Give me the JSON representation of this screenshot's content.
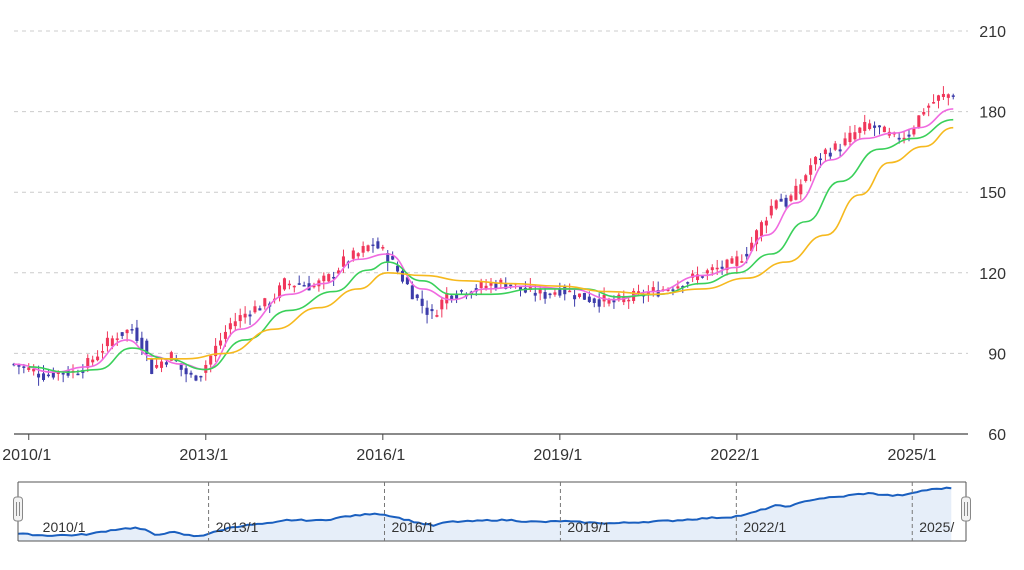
{
  "chart_data": [
    {
      "type": "candlestick",
      "title": "",
      "xlabel": "",
      "ylabel": "",
      "ylim": [
        60,
        210
      ],
      "y_ticks": [
        "210",
        "180",
        "150",
        "120",
        "90",
        "60"
      ],
      "y_tick_values": [
        210,
        180,
        150,
        120,
        90,
        60
      ],
      "x_ticks": [
        "2010/1",
        "2013/1",
        "2016/1",
        "2019/1",
        "2022/1",
        "2025/1"
      ],
      "x_tick_values": [
        "2010-01",
        "2013-01",
        "2016-01",
        "2019-01",
        "2022-01",
        "2025-01"
      ],
      "xlim": [
        "2009-10",
        "2025-12"
      ],
      "grid": "horizontal dashed",
      "candle_up_color": "#f0365a",
      "candle_down_color": "#3c3caa",
      "price_path": [
        [
          "2009-10",
          86
        ],
        [
          "2010-01",
          84
        ],
        [
          "2010-04",
          82
        ],
        [
          "2010-07",
          83
        ],
        [
          "2010-10",
          83
        ],
        [
          "2011-01",
          86
        ],
        [
          "2011-04",
          92
        ],
        [
          "2011-07",
          97
        ],
        [
          "2011-10",
          99
        ],
        [
          "2011-12",
          94
        ],
        [
          "2012-02",
          84
        ],
        [
          "2012-04",
          87
        ],
        [
          "2012-06",
          89
        ],
        [
          "2012-08",
          84
        ],
        [
          "2012-10",
          81
        ],
        [
          "2012-12",
          83
        ],
        [
          "2013-03",
          92
        ],
        [
          "2013-06",
          101
        ],
        [
          "2013-10",
          106
        ],
        [
          "2014-02",
          109
        ],
        [
          "2014-05",
          116
        ],
        [
          "2014-08",
          116
        ],
        [
          "2014-11",
          115
        ],
        [
          "2015-02",
          118
        ],
        [
          "2015-05",
          124
        ],
        [
          "2015-08",
          127
        ],
        [
          "2015-11",
          131
        ],
        [
          "2016-02",
          126
        ],
        [
          "2016-05",
          118
        ],
        [
          "2016-08",
          110
        ],
        [
          "2016-11",
          104
        ],
        [
          "2017-02",
          112
        ],
        [
          "2017-05",
          113
        ],
        [
          "2017-08",
          114
        ],
        [
          "2017-11",
          116
        ],
        [
          "2018-03",
          116
        ],
        [
          "2018-06",
          113
        ],
        [
          "2018-10",
          112
        ],
        [
          "2019-01",
          114
        ],
        [
          "2019-04",
          112
        ],
        [
          "2019-08",
          110
        ],
        [
          "2019-12",
          109
        ],
        [
          "2020-04",
          111
        ],
        [
          "2020-08",
          113
        ],
        [
          "2020-12",
          115
        ],
        [
          "2021-04",
          118
        ],
        [
          "2021-08",
          121
        ],
        [
          "2021-12",
          123
        ],
        [
          "2022-03",
          128
        ],
        [
          "2022-06",
          138
        ],
        [
          "2022-09",
          148
        ],
        [
          "2022-11",
          146
        ],
        [
          "2023-01",
          150
        ],
        [
          "2023-04",
          160
        ],
        [
          "2023-07",
          165
        ],
        [
          "2023-10",
          167
        ],
        [
          "2024-01",
          172
        ],
        [
          "2024-04",
          175
        ],
        [
          "2024-06",
          173
        ],
        [
          "2024-09",
          170
        ],
        [
          "2024-12",
          172
        ],
        [
          "2025-03",
          181
        ],
        [
          "2025-06",
          185
        ],
        [
          "2025-09",
          187
        ]
      ],
      "series": [
        {
          "color": "#f06ae0",
          "values": [
            [
              "2009-10",
              86
            ],
            [
              "2010-06",
              83
            ],
            [
              "2011-01",
              85
            ],
            [
              "2011-09",
              95
            ],
            [
              "2012-02",
              89
            ],
            [
              "2012-08",
              86
            ],
            [
              "2013-01",
              84
            ],
            [
              "2013-08",
              99
            ],
            [
              "2014-06",
              112
            ],
            [
              "2015-01",
              116
            ],
            [
              "2015-08",
              125
            ],
            [
              "2016-02",
              127
            ],
            [
              "2016-09",
              114
            ],
            [
              "2017-03",
              110
            ],
            [
              "2017-10",
              114
            ],
            [
              "2018-06",
              115
            ],
            [
              "2019-03",
              114
            ],
            [
              "2019-12",
              110
            ],
            [
              "2020-08",
              113
            ],
            [
              "2021-06",
              119
            ],
            [
              "2022-01",
              122
            ],
            [
              "2022-07",
              134
            ],
            [
              "2023-01",
              146
            ],
            [
              "2023-08",
              162
            ],
            [
              "2024-03",
              170
            ],
            [
              "2024-09",
              172
            ],
            [
              "2025-02",
              174
            ],
            [
              "2025-09",
              181
            ]
          ]
        },
        {
          "color": "#3ad05a",
          "values": [
            [
              "2010-01",
              85
            ],
            [
              "2010-09",
              83
            ],
            [
              "2011-03",
              84
            ],
            [
              "2011-10",
              92
            ],
            [
              "2012-05",
              88
            ],
            [
              "2013-01",
              84
            ],
            [
              "2013-09",
              95
            ],
            [
              "2014-06",
              106
            ],
            [
              "2015-03",
              113
            ],
            [
              "2015-10",
              121
            ],
            [
              "2016-02",
              124
            ],
            [
              "2016-09",
              117
            ],
            [
              "2017-03",
              112
            ],
            [
              "2017-11",
              112
            ],
            [
              "2018-08",
              114
            ],
            [
              "2019-06",
              114
            ],
            [
              "2020-01",
              111
            ],
            [
              "2020-09",
              112
            ],
            [
              "2021-06",
              116
            ],
            [
              "2022-01",
              120
            ],
            [
              "2022-08",
              127
            ],
            [
              "2023-03",
              139
            ],
            [
              "2023-10",
              154
            ],
            [
              "2024-06",
              166
            ],
            [
              "2025-01",
              170
            ],
            [
              "2025-09",
              177
            ]
          ]
        },
        {
          "color": "#f6b91e",
          "values": [
            [
              "2012-01",
              88
            ],
            [
              "2012-09",
              88
            ],
            [
              "2013-05",
              90
            ],
            [
              "2014-03",
              99
            ],
            [
              "2014-12",
              107
            ],
            [
              "2015-08",
              114
            ],
            [
              "2016-02",
              120
            ],
            [
              "2016-09",
              119
            ],
            [
              "2017-06",
              117
            ],
            [
              "2018-03",
              116
            ],
            [
              "2019-01",
              115
            ],
            [
              "2019-11",
              113
            ],
            [
              "2020-08",
              112
            ],
            [
              "2021-06",
              114
            ],
            [
              "2022-03",
              118
            ],
            [
              "2022-11",
              124
            ],
            [
              "2023-07",
              134
            ],
            [
              "2024-02",
              149
            ],
            [
              "2024-08",
              161
            ],
            [
              "2025-03",
              167
            ],
            [
              "2025-09",
              174
            ]
          ]
        }
      ]
    },
    {
      "type": "area",
      "role": "navigator",
      "x_ticks": [
        "2010/1",
        "2013/1",
        "2016/1",
        "2019/1",
        "2022/1",
        "2025/"
      ],
      "x_tick_values": [
        "2010-01",
        "2013-01",
        "2016-01",
        "2019-01",
        "2022-01",
        "2025-01"
      ],
      "line_color": "#1a5fbf",
      "fill_color": "#e6eef9",
      "handle_glyph": "||"
    }
  ]
}
